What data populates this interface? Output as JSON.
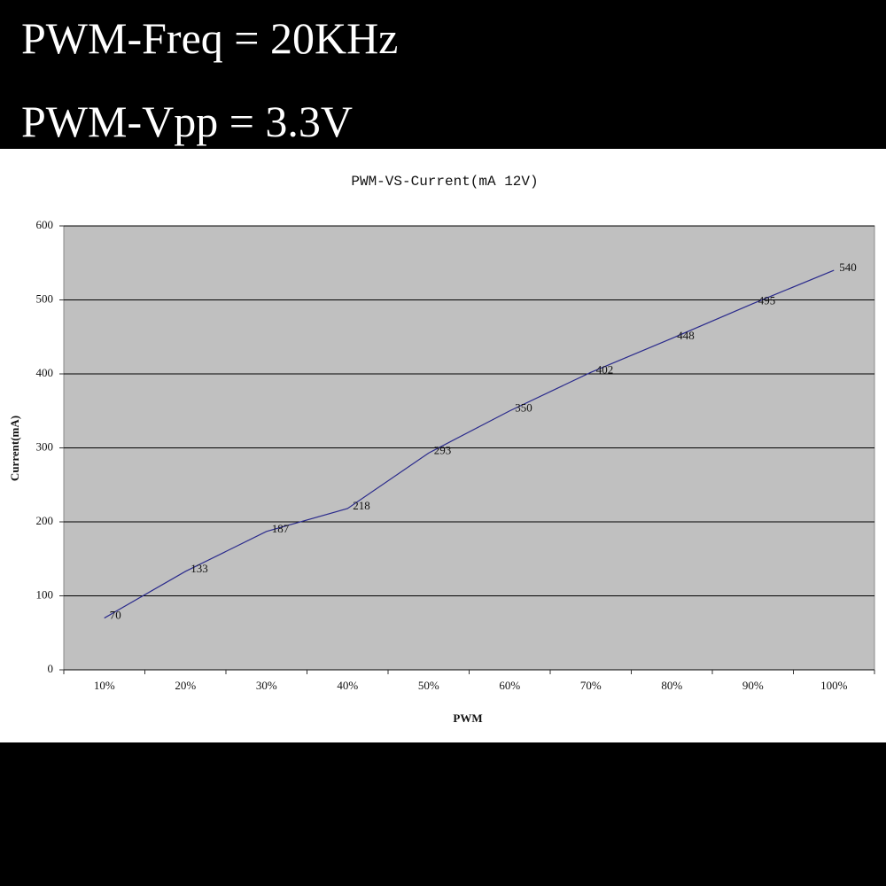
{
  "header": {
    "lines": [
      "PWM-Freq = 20KHz",
      "PWM-Vpp = 3.3V"
    ]
  },
  "chart_data": {
    "type": "line",
    "title": "PWM-VS-Current(mA 12V)",
    "x_label": "PWM",
    "y_label": "Current(mA)",
    "categories": [
      "10%",
      "20%",
      "30%",
      "40%",
      "50%",
      "60%",
      "70%",
      "80%",
      "90%",
      "100%"
    ],
    "values": [
      70,
      133,
      187,
      218,
      293,
      350,
      402,
      448,
      495,
      540
    ],
    "color": "#2a2a8c",
    "ylim": [
      0,
      600
    ],
    "yticks": [
      0,
      100,
      200,
      300,
      400,
      500,
      600
    ],
    "grid": true
  }
}
